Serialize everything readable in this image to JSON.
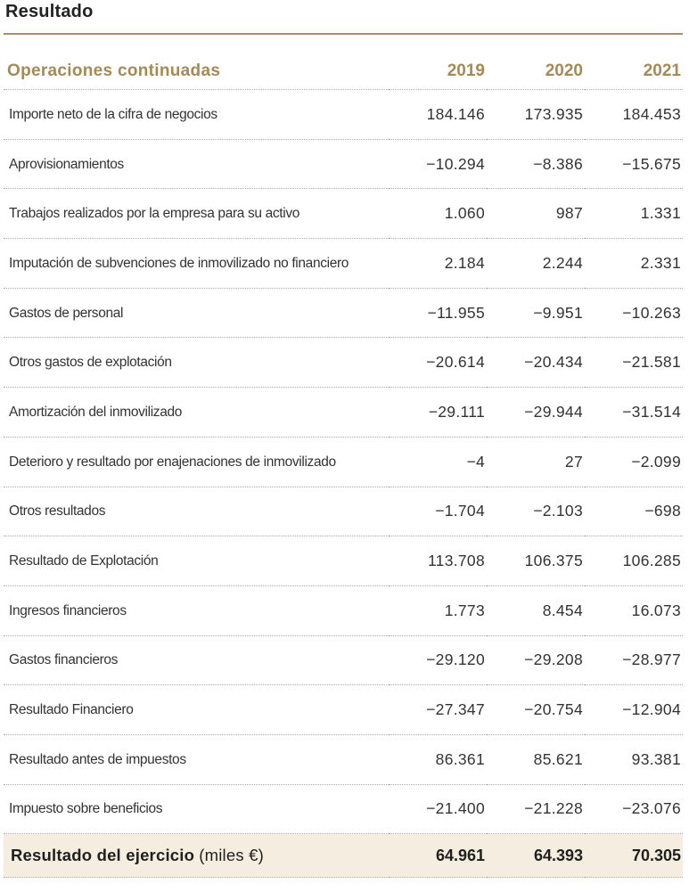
{
  "title": "Resultado",
  "table": {
    "section_header": "Operaciones continuadas",
    "years": [
      "2019",
      "2020",
      "2021"
    ],
    "rows": [
      {
        "label": "Importe neto de la cifra de negocios",
        "values": [
          "184.146",
          "173.935",
          "184.453"
        ]
      },
      {
        "label": "Aprovisionamientos",
        "values": [
          "−10.294",
          "−8.386",
          "−15.675"
        ]
      },
      {
        "label": "Trabajos realizados por la empresa para su activo",
        "values": [
          "1.060",
          "987",
          "1.331"
        ]
      },
      {
        "label": "Imputación de subvenciones de inmovilizado no financiero",
        "values": [
          "2.184",
          "2.244",
          "2.331"
        ]
      },
      {
        "label": "Gastos de personal",
        "values": [
          "−11.955",
          "−9.951",
          "−10.263"
        ]
      },
      {
        "label": "Otros gastos de explotación",
        "values": [
          "−20.614",
          "−20.434",
          "−21.581"
        ]
      },
      {
        "label": "Amortización del inmovilizado",
        "values": [
          "−29.111",
          "−29.944",
          "−31.514"
        ]
      },
      {
        "label": "Deterioro y resultado por enajenaciones de inmovilizado",
        "values": [
          "−4",
          "27",
          "−2.099"
        ]
      },
      {
        "label": "Otros resultados",
        "values": [
          "−1.704",
          "−2.103",
          "−698"
        ]
      },
      {
        "label": "Resultado de Explotación",
        "values": [
          "113.708",
          "106.375",
          "106.285"
        ]
      },
      {
        "label": "Ingresos financieros",
        "values": [
          "1.773",
          "8.454",
          "16.073"
        ]
      },
      {
        "label": "Gastos financieros",
        "values": [
          "−29.120",
          "−29.208",
          "−28.977"
        ]
      },
      {
        "label": "Resultado Financiero",
        "values": [
          "−27.347",
          "−20.754",
          "−12.904"
        ]
      },
      {
        "label": "Resultado antes de impuestos",
        "values": [
          "86.361",
          "85.621",
          "93.381"
        ]
      },
      {
        "label": "Impuesto sobre beneficios",
        "values": [
          "−21.400",
          "−21.228",
          "−23.076"
        ]
      }
    ],
    "total": {
      "label": "Resultado del ejercicio",
      "unit": "(miles €)",
      "values": [
        "64.961",
        "64.393",
        "70.305"
      ]
    }
  },
  "colors": {
    "accent": "#a58a55",
    "rule": "#a4916a",
    "total_background": "#f5eddf",
    "text": "#333333"
  }
}
